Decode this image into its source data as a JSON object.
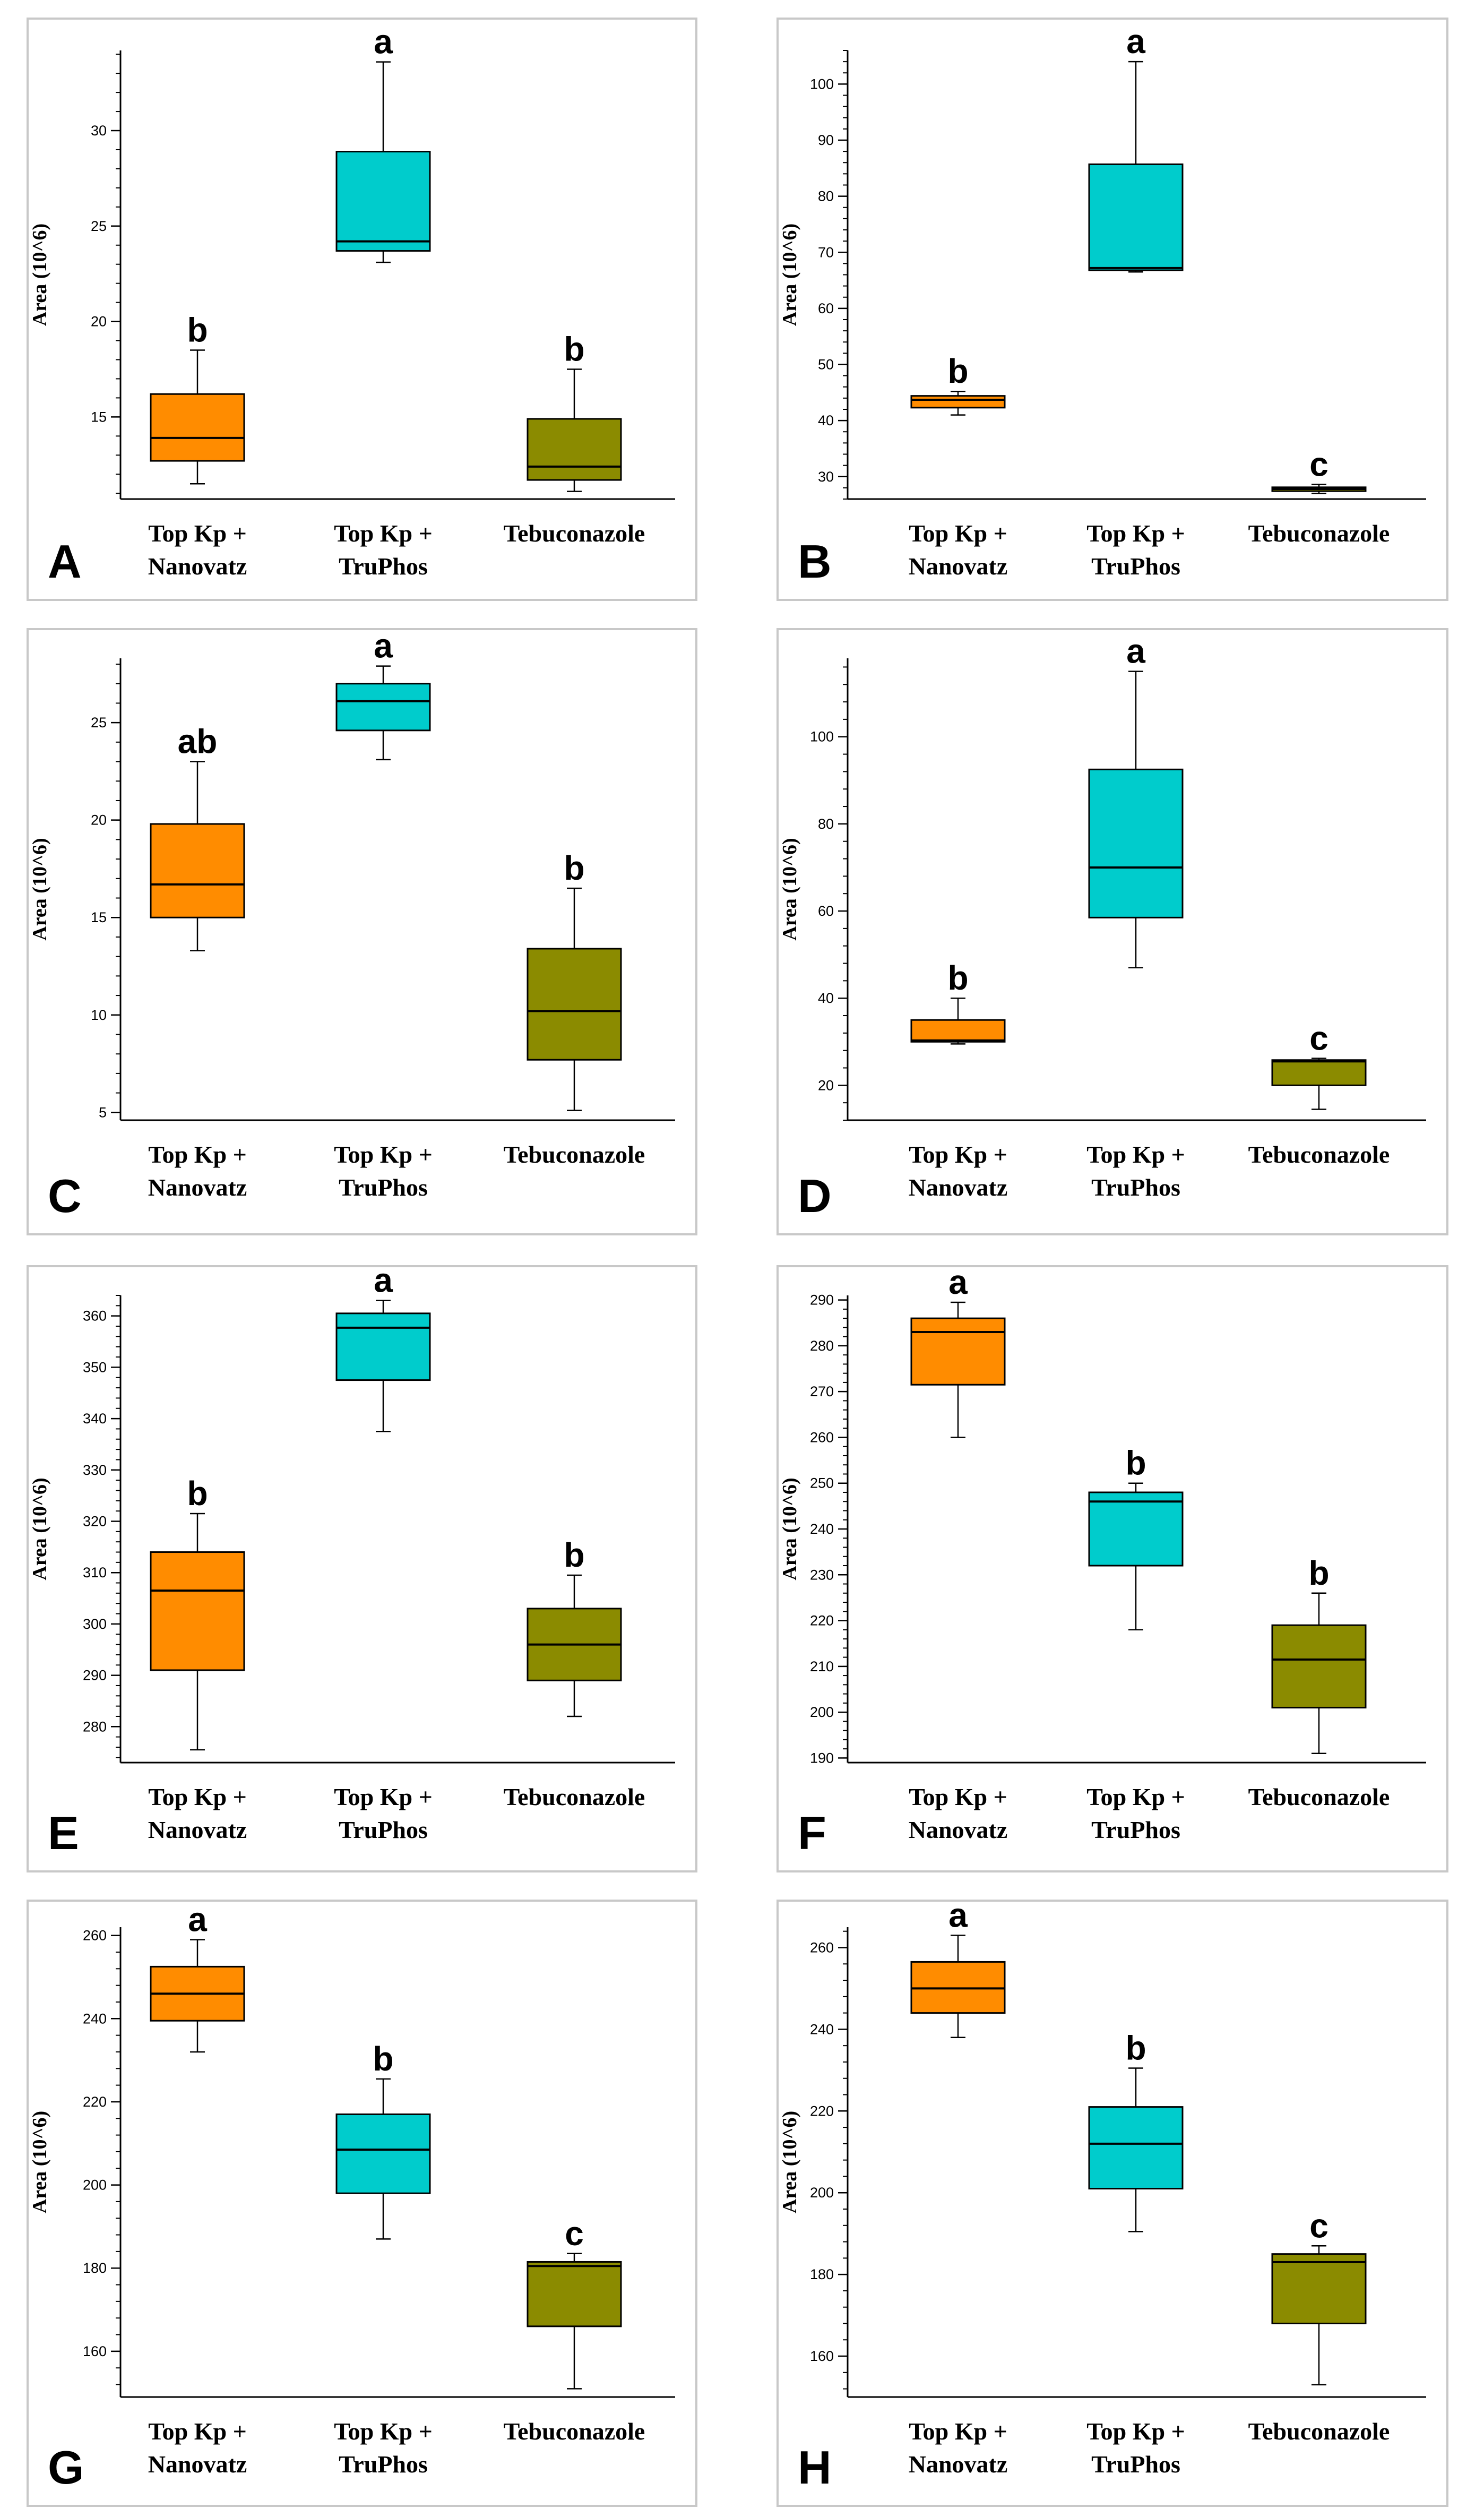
{
  "figure": {
    "ylabel": "Area (10^6)",
    "categories_text": [
      [
        "Top Kp +",
        "Nanovatz"
      ],
      [
        "Top Kp +",
        "TruPhos"
      ],
      [
        "Tebuconazole"
      ]
    ],
    "colors": {
      "orange": "#FF8C00",
      "cyan": "#00CCCC",
      "olive": "#8B8B00",
      "frame": "#c8c8c8",
      "axis": "#000000"
    }
  },
  "chart_data": [
    {
      "panel": "A",
      "type": "box",
      "categories": [
        "Top Kp + Nanovatz",
        "Top Kp + TruPhos",
        "Tebuconazole"
      ],
      "ylabel": "Area (10^6)",
      "ylim": [
        10.7,
        34.2
      ],
      "ticks": [
        15,
        20,
        25,
        30
      ],
      "boxes": [
        {
          "min": 11.5,
          "q1": 12.7,
          "median": 13.9,
          "q3": 16.2,
          "max": 18.5,
          "letter": "b"
        },
        {
          "min": 23.1,
          "q1": 23.7,
          "median": 24.2,
          "q3": 28.9,
          "max": 33.6,
          "letter": "a"
        },
        {
          "min": 11.1,
          "q1": 11.7,
          "median": 12.4,
          "q3": 14.9,
          "max": 17.5,
          "letter": "b"
        }
      ]
    },
    {
      "panel": "B",
      "type": "box",
      "categories": [
        "Top Kp + Nanovatz",
        "Top Kp + TruPhos",
        "Tebuconazole"
      ],
      "ylabel": "Area (10^6)",
      "ylim": [
        26,
        106
      ],
      "ticks": [
        30,
        40,
        50,
        60,
        70,
        80,
        90,
        100
      ],
      "boxes": [
        {
          "min": 41,
          "q1": 42.3,
          "median": 43.7,
          "q3": 44.4,
          "max": 45.2,
          "letter": "b"
        },
        {
          "min": 66.5,
          "q1": 66.8,
          "median": 67.2,
          "q3": 85.7,
          "max": 104,
          "letter": "a"
        },
        {
          "min": 27,
          "q1": 27.4,
          "median": 27.8,
          "q3": 28.1,
          "max": 28.6,
          "letter": "c"
        }
      ]
    },
    {
      "panel": "C",
      "type": "box",
      "categories": [
        "Top Kp + Nanovatz",
        "Top Kp + TruPhos",
        "Tebuconazole"
      ],
      "ylabel": "Area (10^6)",
      "ylim": [
        4.6,
        28.3
      ],
      "ticks": [
        5,
        10,
        15,
        20,
        25
      ],
      "boxes": [
        {
          "min": 13.3,
          "q1": 15,
          "median": 16.7,
          "q3": 19.8,
          "max": 23,
          "letter": "ab"
        },
        {
          "min": 23.1,
          "q1": 24.6,
          "median": 26.1,
          "q3": 27,
          "max": 27.9,
          "letter": "a"
        },
        {
          "min": 5.1,
          "q1": 7.7,
          "median": 10.2,
          "q3": 13.4,
          "max": 16.5,
          "letter": "b"
        }
      ]
    },
    {
      "panel": "D",
      "type": "box",
      "categories": [
        "Top Kp + Nanovatz",
        "Top Kp + TruPhos",
        "Tebuconazole"
      ],
      "ylabel": "Area (10^6)",
      "ylim": [
        12,
        118
      ],
      "ticks": [
        20,
        40,
        60,
        80,
        100
      ],
      "boxes": [
        {
          "min": 29.5,
          "q1": 30,
          "median": 30.3,
          "q3": 35,
          "max": 40,
          "letter": "b"
        },
        {
          "min": 47,
          "q1": 58.5,
          "median": 70,
          "q3": 92.5,
          "max": 115,
          "letter": "a"
        },
        {
          "min": 14.5,
          "q1": 20,
          "median": 25.5,
          "q3": 25.8,
          "max": 26.2,
          "letter": "c"
        }
      ]
    },
    {
      "panel": "E",
      "type": "box",
      "categories": [
        "Top Kp + Nanovatz",
        "Top Kp + TruPhos",
        "Tebuconazole"
      ],
      "ylabel": "Area (10^6)",
      "ylim": [
        273,
        364
      ],
      "ticks": [
        280,
        290,
        300,
        310,
        320,
        330,
        340,
        350,
        360
      ],
      "boxes": [
        {
          "min": 275.5,
          "q1": 291,
          "median": 306.5,
          "q3": 314,
          "max": 321.5,
          "letter": "b"
        },
        {
          "min": 337.5,
          "q1": 347.5,
          "median": 357.7,
          "q3": 360.5,
          "max": 363,
          "letter": "a"
        },
        {
          "min": 282,
          "q1": 289,
          "median": 296,
          "q3": 303,
          "max": 309.5,
          "letter": "b"
        }
      ]
    },
    {
      "panel": "F",
      "type": "box",
      "categories": [
        "Top Kp + Nanovatz",
        "Top Kp + TruPhos",
        "Tebuconazole"
      ],
      "ylabel": "Area (10^6)",
      "ylim": [
        189,
        291
      ],
      "ticks": [
        190,
        200,
        210,
        220,
        230,
        240,
        250,
        260,
        270,
        280,
        290
      ],
      "boxes": [
        {
          "min": 260,
          "q1": 271.5,
          "median": 283,
          "q3": 286,
          "max": 289.5,
          "letter": "a"
        },
        {
          "min": 218,
          "q1": 232,
          "median": 246,
          "q3": 248,
          "max": 250,
          "letter": "b"
        },
        {
          "min": 191,
          "q1": 201,
          "median": 211.5,
          "q3": 219,
          "max": 226,
          "letter": "b"
        }
      ]
    },
    {
      "panel": "G",
      "type": "box",
      "categories": [
        "Top Kp + Nanovatz",
        "Top Kp + TruPhos",
        "Tebuconazole"
      ],
      "ylabel": "Area (10^6)",
      "ylim": [
        149,
        262
      ],
      "ticks": [
        160,
        180,
        200,
        220,
        240,
        260
      ],
      "boxes": [
        {
          "min": 232,
          "q1": 239.5,
          "median": 246,
          "q3": 252.5,
          "max": 259,
          "letter": "a"
        },
        {
          "min": 187,
          "q1": 198,
          "median": 208.5,
          "q3": 217,
          "max": 225.5,
          "letter": "b"
        },
        {
          "min": 151,
          "q1": 166,
          "median": 180.5,
          "q3": 181.5,
          "max": 183.5,
          "letter": "c"
        }
      ]
    },
    {
      "panel": "H",
      "type": "box",
      "categories": [
        "Top Kp + Nanovatz",
        "Top Kp + TruPhos",
        "Tebuconazole"
      ],
      "ylabel": "Area (10^6)",
      "ylim": [
        150,
        265
      ],
      "ticks": [
        160,
        180,
        200,
        220,
        240,
        260
      ],
      "boxes": [
        {
          "min": 238,
          "q1": 244,
          "median": 250,
          "q3": 256.5,
          "max": 263,
          "letter": "a"
        },
        {
          "min": 190.5,
          "q1": 201,
          "median": 212,
          "q3": 221,
          "max": 230.5,
          "letter": "b"
        },
        {
          "min": 153,
          "q1": 168,
          "median": 183,
          "q3": 185,
          "max": 187,
          "letter": "c"
        }
      ]
    }
  ]
}
